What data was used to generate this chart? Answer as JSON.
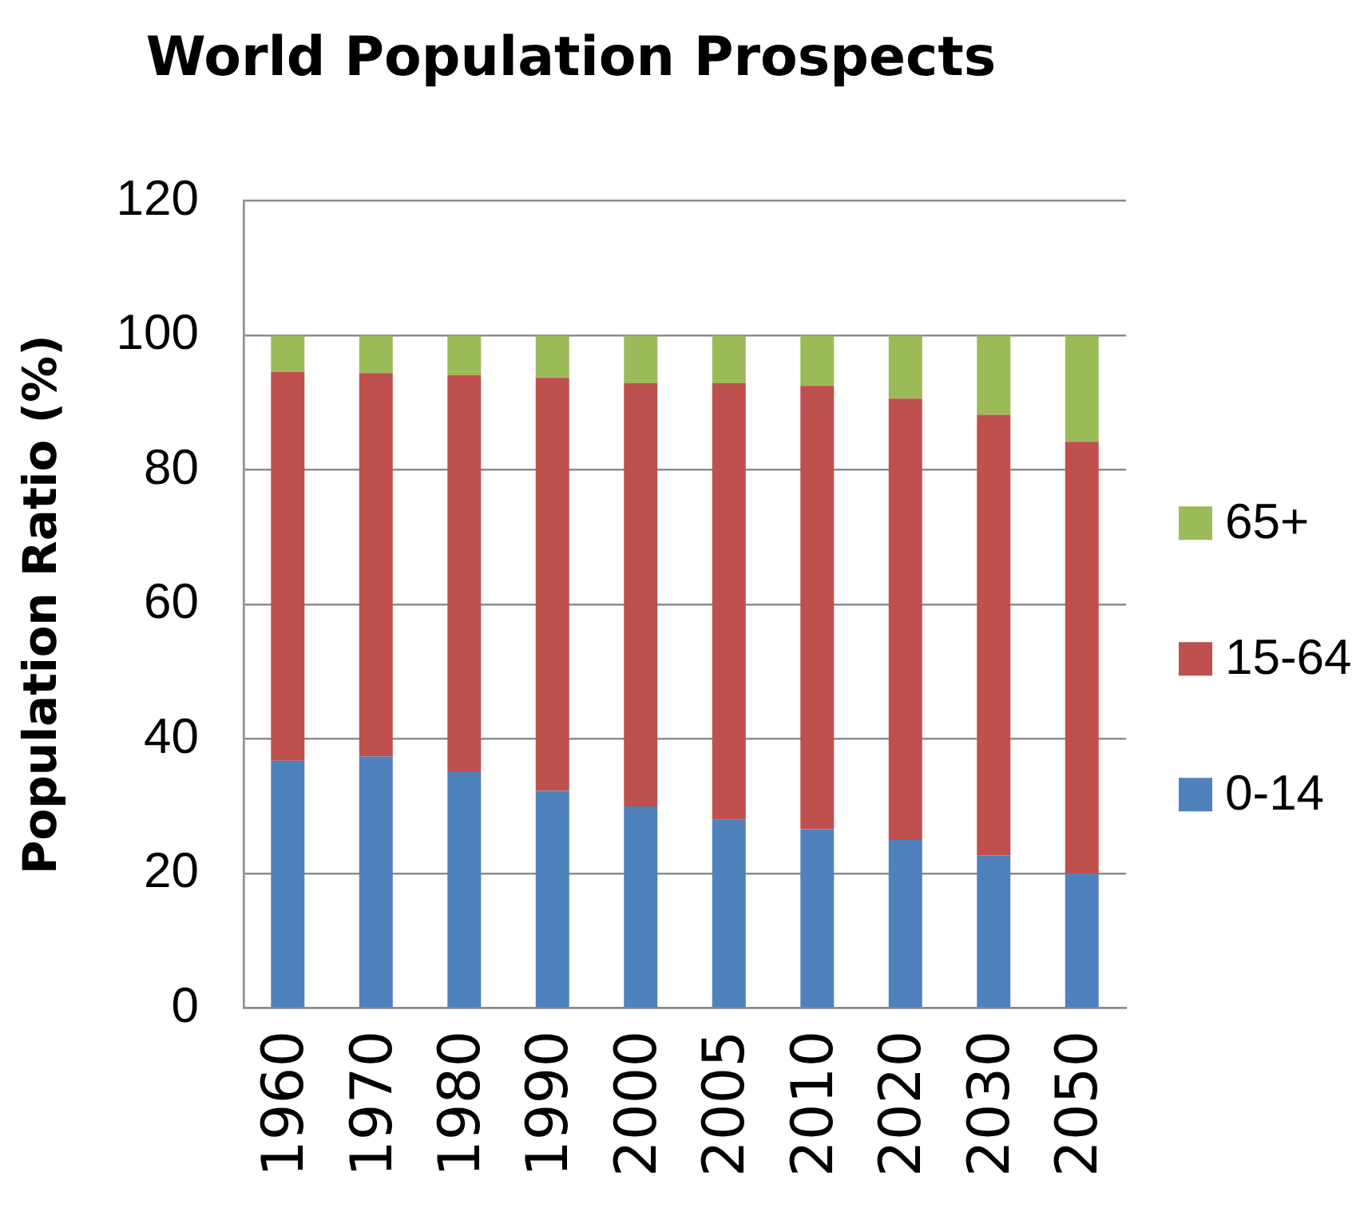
{
  "chart_data": {
    "type": "bar",
    "title": "World Population Prospects",
    "ylabel": "Population Ratio (%)",
    "categories": [
      "1960",
      "1970",
      "1980",
      "1990",
      "2000",
      "2005",
      "2010",
      "2020",
      "2030",
      "2050"
    ],
    "series": [
      {
        "name": "0-14",
        "color": "#4f81bd",
        "values": [
          36.8,
          37.4,
          35.1,
          32.3,
          30.0,
          28.0,
          26.6,
          25.0,
          22.7,
          20.0
        ]
      },
      {
        "name": "15-64",
        "color": "#c0504d",
        "values": [
          57.8,
          57.0,
          59.0,
          61.4,
          62.9,
          64.9,
          65.9,
          65.6,
          65.5,
          64.2
        ]
      },
      {
        "name": "65+",
        "color": "#9bbb59",
        "values": [
          5.4,
          5.6,
          5.9,
          6.3,
          7.1,
          7.1,
          7.5,
          9.4,
          11.8,
          15.8
        ]
      }
    ],
    "stacked": true,
    "ylim": [
      0,
      120
    ],
    "yticks": [
      0,
      20,
      40,
      60,
      80,
      100,
      120
    ],
    "grid": "y",
    "legend": "right"
  }
}
